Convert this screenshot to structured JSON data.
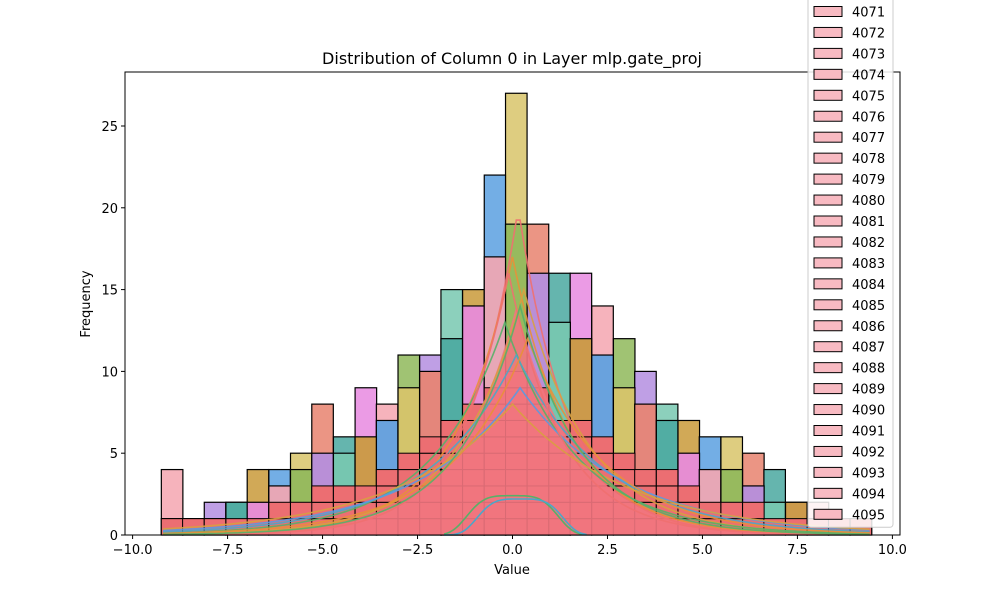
{
  "chart_data": {
    "type": "bar",
    "title": "Distribution of Column 0 in Layer mlp.gate_proj",
    "xlabel": "Value",
    "ylabel": "Frequency",
    "xlim": [
      -10.2,
      10.2
    ],
    "ylim": [
      0,
      28.3
    ],
    "x_ticks": [
      -10.0,
      -7.5,
      -5.0,
      -2.5,
      0.0,
      2.5,
      5.0,
      7.5,
      10.0
    ],
    "x_tick_labels": [
      "−10.0",
      "−7.5",
      "−5.0",
      "−2.5",
      "0.0",
      "2.5",
      "5.0",
      "7.5",
      "10.0"
    ],
    "y_ticks": [
      0,
      5,
      10,
      15,
      20,
      25
    ],
    "y_tick_labels": [
      "0",
      "5",
      "10",
      "15",
      "20",
      "25"
    ],
    "grid": false,
    "legend_position": "top-right, clipped above the plot",
    "bin_width": 0.567,
    "bin_centers": [
      -8.96,
      -8.4,
      -7.83,
      -7.26,
      -6.7,
      -6.13,
      -5.56,
      -5.0,
      -4.43,
      -3.86,
      -3.3,
      -2.73,
      -2.16,
      -1.6,
      -1.03,
      -0.46,
      0.1,
      0.67,
      1.24,
      1.8,
      2.37,
      2.94,
      3.5,
      4.07,
      4.64,
      5.2,
      5.77,
      6.34,
      6.9,
      7.47,
      8.04,
      8.6,
      9.17
    ],
    "series": [
      {
        "values": [
          4,
          1,
          2,
          2,
          4,
          4,
          5,
          8,
          6,
          9,
          8,
          11,
          11,
          15,
          15,
          22,
          27,
          19,
          16,
          16,
          14,
          12,
          10,
          8,
          7,
          6,
          6,
          5,
          4,
          2,
          2,
          1,
          1
        ]
      },
      {
        "values": [
          1,
          1,
          1,
          2,
          2,
          3,
          4,
          5,
          5,
          6,
          7,
          9,
          10,
          12,
          14,
          17,
          19,
          16,
          13,
          12,
          11,
          9,
          8,
          7,
          5,
          4,
          4,
          3,
          2,
          2,
          1,
          1,
          1
        ]
      },
      {
        "values": [
          0,
          0,
          0,
          0,
          0,
          0,
          0,
          0,
          0,
          0,
          0,
          0,
          0,
          1,
          2,
          2,
          2,
          2,
          1,
          0,
          0,
          0,
          0,
          0,
          0,
          0,
          0,
          0,
          0,
          0,
          0,
          0,
          0
        ]
      }
    ],
    "bar_colors": [
      "#f4a6b0",
      "#e8836f",
      "#c99a3a",
      "#8fb85a",
      "#4aa8a0",
      "#5aa0e0",
      "#b48ee0",
      "#e88ae0",
      "#d8c46a",
      "#78c8b0"
    ],
    "kde_colors": [
      "#f07070",
      "#e8903a",
      "#d8a040",
      "#58b068",
      "#4ca6c8",
      "#5a9ae0"
    ],
    "legend": {
      "patch_color": "#f8bac2",
      "entries": [
        "4071",
        "4072",
        "4073",
        "4074",
        "4075",
        "4076",
        "4077",
        "4078",
        "4079",
        "4080",
        "4081",
        "4082",
        "4083",
        "4084",
        "4085",
        "4086",
        "4087",
        "4088",
        "4089",
        "4090",
        "4091",
        "4092",
        "4093",
        "4094",
        "4095"
      ]
    }
  }
}
